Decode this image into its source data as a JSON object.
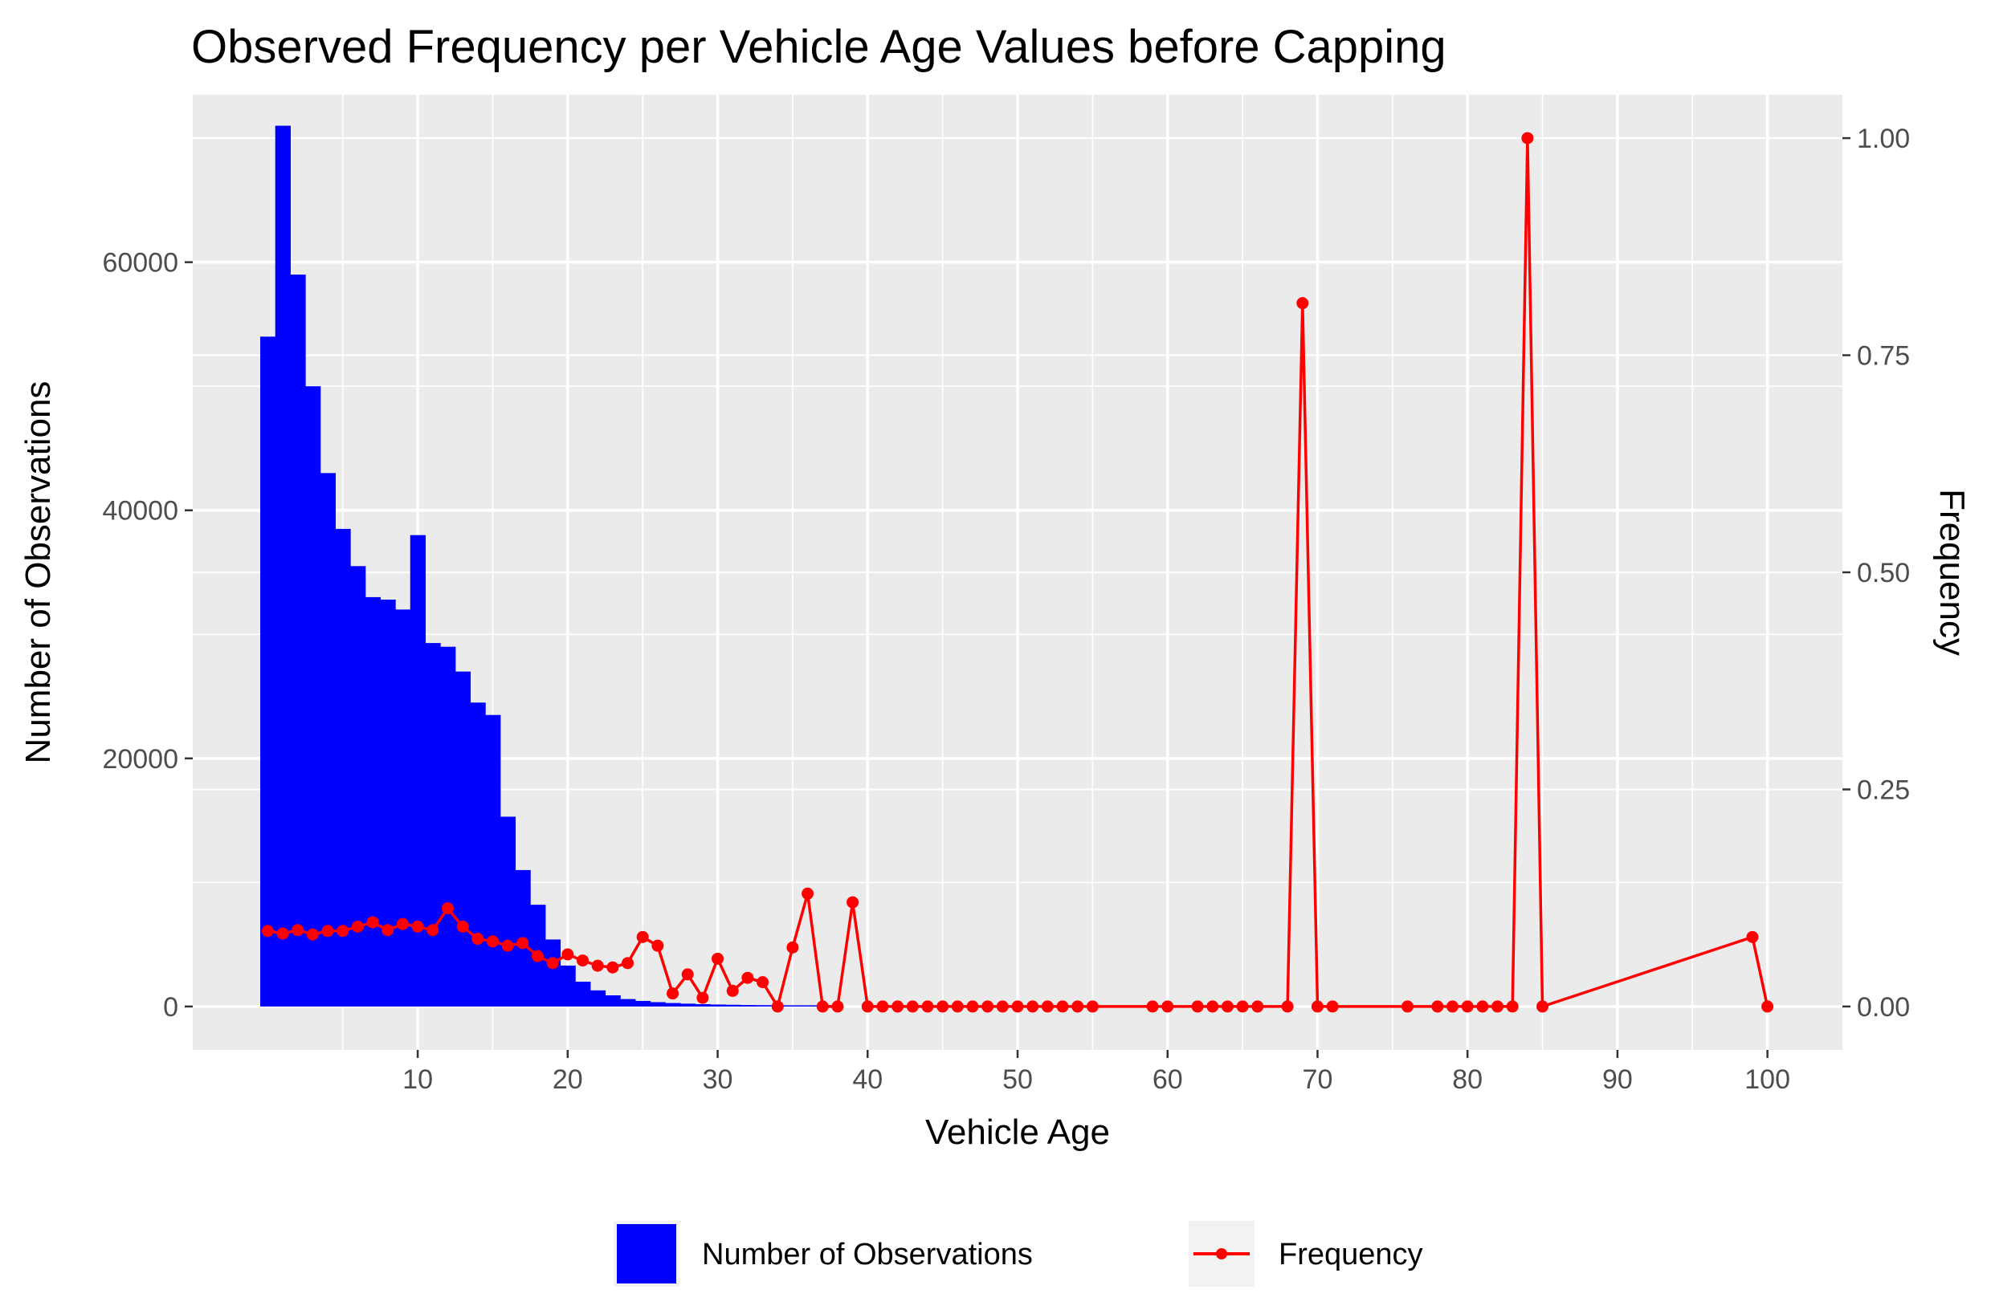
{
  "chart_data": {
    "type": "bar+line",
    "title": "Observed Frequency per Vehicle Age Values before Capping",
    "xlabel": "Vehicle Age",
    "ylabel_left": "Number of Observations",
    "ylabel_right": "Frequency",
    "xlim": [
      -5,
      105
    ],
    "xticks": [
      10,
      20,
      30,
      40,
      50,
      60,
      70,
      80,
      90,
      100
    ],
    "ylim_left": [
      -3500,
      73500
    ],
    "yticks_left": [
      0,
      20000,
      40000,
      60000
    ],
    "ylim_right": [
      -0.05,
      1.05
    ],
    "yticks_right": [
      "0.00",
      "0.25",
      "0.50",
      "0.75",
      "1.00"
    ],
    "grid": true,
    "legend_position": "bottom",
    "series": [
      {
        "name": "Number of Observations",
        "type": "bar",
        "color": "#0000ff",
        "x": [
          0,
          1,
          2,
          3,
          4,
          5,
          6,
          7,
          8,
          9,
          10,
          11,
          12,
          13,
          14,
          15,
          16,
          17,
          18,
          19,
          20,
          21,
          22,
          23,
          24,
          25,
          26,
          27,
          28,
          29,
          30,
          31,
          32,
          33,
          34,
          35,
          36,
          37
        ],
        "values": [
          54000,
          71000,
          59000,
          50000,
          43000,
          38500,
          35500,
          33000,
          32800,
          32000,
          38000,
          29300,
          29000,
          27000,
          24500,
          23500,
          15300,
          11000,
          8200,
          5400,
          3300,
          2000,
          1300,
          900,
          600,
          450,
          350,
          280,
          230,
          190,
          160,
          140,
          120,
          110,
          100,
          90,
          80,
          60
        ]
      },
      {
        "name": "Frequency",
        "type": "line",
        "color": "#ff0000",
        "x": [
          0,
          1,
          2,
          3,
          4,
          5,
          6,
          7,
          8,
          9,
          10,
          11,
          12,
          13,
          14,
          15,
          16,
          17,
          18,
          19,
          20,
          21,
          22,
          23,
          24,
          25,
          26,
          27,
          28,
          29,
          30,
          31,
          32,
          33,
          34,
          35,
          36,
          37,
          38,
          39,
          40,
          41,
          42,
          43,
          44,
          45,
          46,
          47,
          48,
          49,
          50,
          51,
          52,
          53,
          54,
          55,
          59,
          60,
          62,
          63,
          64,
          65,
          66,
          68,
          69,
          70,
          71,
          76,
          78,
          79,
          80,
          81,
          82,
          83,
          84,
          85,
          99,
          100
        ],
        "values": [
          0.087,
          0.084,
          0.088,
          0.083,
          0.087,
          0.087,
          0.092,
          0.097,
          0.088,
          0.095,
          0.092,
          0.088,
          0.113,
          0.092,
          0.078,
          0.075,
          0.07,
          0.073,
          0.058,
          0.05,
          0.06,
          0.053,
          0.047,
          0.045,
          0.05,
          0.08,
          0.07,
          0.015,
          0.037,
          0.01,
          0.055,
          0.018,
          0.033,
          0.028,
          0.0,
          0.068,
          0.13,
          0.0,
          0.0,
          0.12,
          0.0,
          0.0,
          0.0,
          0.0,
          0.0,
          0.0,
          0.0,
          0.0,
          0.0,
          0.0,
          0.0,
          0.0,
          0.0,
          0.0,
          0.0,
          0.0,
          0.0,
          0.0,
          0.0,
          0.0,
          0.0,
          0.0,
          0.0,
          0.0,
          0.81,
          0.0,
          0.0,
          0.0,
          0.0,
          0.0,
          0.0,
          0.0,
          0.0,
          0.0,
          1.0,
          0.0,
          0.08,
          0.0
        ]
      }
    ],
    "legend": [
      {
        "label": "Number of Observations",
        "color": "#0000ff",
        "kind": "fill"
      },
      {
        "label": "Frequency",
        "color": "#ff0000",
        "kind": "line-point"
      }
    ]
  }
}
